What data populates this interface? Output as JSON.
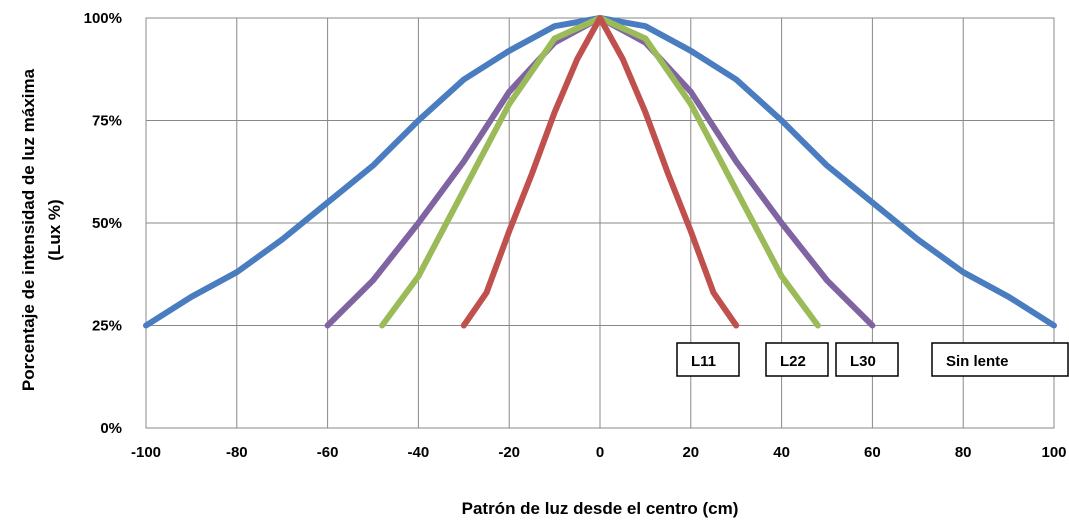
{
  "chart_data": {
    "type": "line",
    "title": "",
    "xlabel": "Patrón de luz desde el centro (cm)",
    "ylabel_line1": "Porcentaje de intensidad de luz máxima",
    "ylabel_line2": "(Lux %)",
    "xlim": [
      -100,
      100
    ],
    "ylim": [
      0,
      100
    ],
    "x_ticks": [
      -100,
      -80,
      -60,
      -40,
      -20,
      0,
      20,
      40,
      60,
      80,
      100
    ],
    "x_tick_labels": [
      "-100",
      "-80",
      "-60",
      "-40",
      "-20",
      "0",
      "20",
      "40",
      "60",
      "80",
      "100"
    ],
    "y_ticks": [
      0,
      25,
      50,
      75,
      100
    ],
    "y_tick_labels": [
      "0%",
      "25%",
      "50%",
      "75%",
      "100%"
    ],
    "grid": true,
    "series": [
      {
        "name": "Sin lente",
        "color": "#4a7cc0",
        "x": [
          -100,
          -90,
          -80,
          -70,
          -60,
          -50,
          -40,
          -30,
          -20,
          -10,
          0,
          10,
          20,
          30,
          40,
          50,
          60,
          70,
          80,
          90,
          100
        ],
        "y": [
          25,
          32,
          38,
          46,
          55,
          64,
          75,
          85,
          92,
          98,
          100,
          98,
          92,
          85,
          75,
          64,
          55,
          46,
          38,
          32,
          25
        ]
      },
      {
        "name": "L30",
        "color": "#8064a2",
        "x": [
          -60,
          -50,
          -40,
          -30,
          -20,
          -10,
          0,
          10,
          20,
          30,
          40,
          50,
          60
        ],
        "y": [
          25,
          36,
          50,
          65,
          82,
          94,
          100,
          94,
          82,
          65,
          50,
          36,
          25
        ]
      },
      {
        "name": "L22",
        "color": "#9bbb59",
        "x": [
          -48,
          -40,
          -30,
          -20,
          -10,
          0,
          10,
          20,
          30,
          40,
          48
        ],
        "y": [
          25,
          37,
          58,
          79,
          95,
          100,
          95,
          79,
          58,
          37,
          25
        ]
      },
      {
        "name": "L11",
        "color": "#c0504d",
        "x": [
          -30,
          -25,
          -20,
          -15,
          -10,
          -5,
          0,
          5,
          10,
          15,
          20,
          25,
          30
        ],
        "y": [
          25,
          33,
          48,
          62,
          77,
          90,
          100,
          90,
          77,
          62,
          48,
          33,
          25
        ]
      }
    ],
    "annotations": [
      {
        "text": "L11",
        "series": "L11"
      },
      {
        "text": "L22",
        "series": "L22"
      },
      {
        "text": "L30",
        "series": "L30"
      },
      {
        "text": "Sin lente",
        "series": "Sin lente"
      }
    ]
  }
}
